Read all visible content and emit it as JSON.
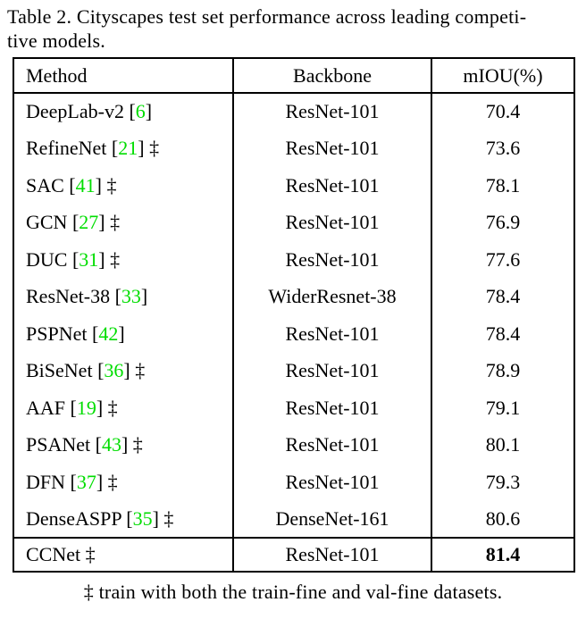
{
  "caption": {
    "line1": "Table 2. Cityscapes test set performance across leading competi-",
    "line2": "tive models."
  },
  "table": {
    "headers": [
      "Method",
      "Backbone",
      "mIOU(%)"
    ],
    "rows": [
      {
        "method": "DeepLab-v2",
        "cite": "6",
        "dagger": false,
        "backbone": "ResNet-101",
        "miou": "70.4"
      },
      {
        "method": "RefineNet",
        "cite": "21",
        "dagger": true,
        "backbone": "ResNet-101",
        "miou": "73.6"
      },
      {
        "method": "SAC",
        "cite": "41",
        "dagger": true,
        "backbone": "ResNet-101",
        "miou": "78.1"
      },
      {
        "method": "GCN",
        "cite": "27",
        "dagger": true,
        "backbone": "ResNet-101",
        "miou": "76.9"
      },
      {
        "method": "DUC",
        "cite": "31",
        "dagger": true,
        "backbone": "ResNet-101",
        "miou": "77.6"
      },
      {
        "method": "ResNet-38",
        "cite": "33",
        "dagger": false,
        "backbone": "WiderResnet-38",
        "miou": "78.4"
      },
      {
        "method": "PSPNet",
        "cite": "42",
        "dagger": false,
        "backbone": "ResNet-101",
        "miou": "78.4"
      },
      {
        "method": "BiSeNet",
        "cite": "36",
        "dagger": true,
        "backbone": "ResNet-101",
        "miou": "78.9"
      },
      {
        "method": "AAF",
        "cite": "19",
        "dagger": true,
        "backbone": "ResNet-101",
        "miou": "79.1"
      },
      {
        "method": "PSANet",
        "cite": "43",
        "dagger": true,
        "backbone": "ResNet-101",
        "miou": "80.1"
      },
      {
        "method": "DFN",
        "cite": "37",
        "dagger": true,
        "backbone": "ResNet-101",
        "miou": "79.3"
      },
      {
        "method": "DenseASPP",
        "cite": "35",
        "dagger": true,
        "backbone": "DenseNet-161",
        "miou": "80.6"
      }
    ],
    "final_row": {
      "method": "CCNet",
      "cite": "",
      "dagger": true,
      "backbone": "ResNet-101",
      "miou": "81.4",
      "miou_bold": true
    }
  },
  "footnote": "‡ train with both the train-fine and val-fine datasets.",
  "colors": {
    "citation_green": "#00DD00",
    "text": "#000000",
    "background": "#ffffff"
  }
}
